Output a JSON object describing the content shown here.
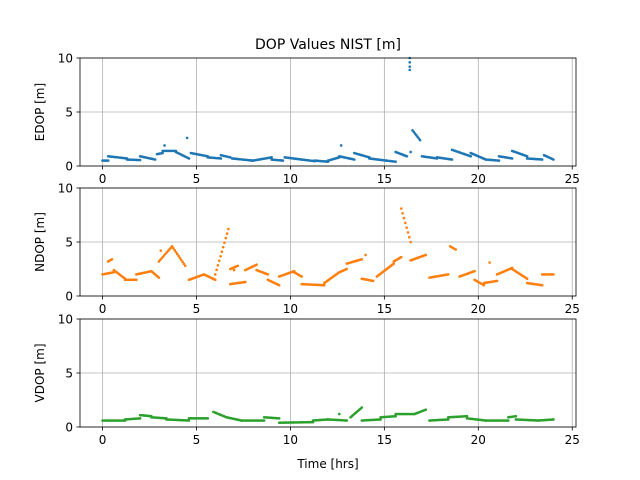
{
  "chart_data": [
    {
      "type": "scatter",
      "title": "DOP Values NIST [m]",
      "ylabel": "EDOP [m]",
      "xlabel": "",
      "xlim": [
        -1.2,
        25.2
      ],
      "ylim": [
        0,
        10
      ],
      "xticks": [
        "0",
        "5",
        "10",
        "15",
        "20",
        "25"
      ],
      "yticks": [
        "0",
        "5",
        "10"
      ],
      "grid": true,
      "color": "#1f77b4",
      "segments": [
        {
          "x0": 0.0,
          "x1": 0.3,
          "y0": 0.5,
          "y1": 0.5
        },
        {
          "x0": 0.3,
          "x1": 1.3,
          "y0": 0.9,
          "y1": 0.7
        },
        {
          "x0": 1.3,
          "x1": 2.0,
          "y0": 0.6,
          "y1": 0.55
        },
        {
          "x0": 2.0,
          "x1": 2.8,
          "y0": 0.9,
          "y1": 0.6
        },
        {
          "x0": 2.9,
          "x1": 3.2,
          "y0": 1.1,
          "y1": 1.2
        },
        {
          "x0": 3.2,
          "x1": 3.9,
          "y0": 1.4,
          "y1": 1.4
        },
        {
          "x0": 3.9,
          "x1": 4.6,
          "y0": 1.3,
          "y1": 0.7
        },
        {
          "x0": 4.7,
          "x1": 5.6,
          "y0": 1.2,
          "y1": 0.9
        },
        {
          "x0": 5.6,
          "x1": 6.3,
          "y0": 0.8,
          "y1": 0.7
        },
        {
          "x0": 6.3,
          "x1": 6.8,
          "y0": 1.0,
          "y1": 0.8
        },
        {
          "x0": 6.9,
          "x1": 8.0,
          "y0": 0.7,
          "y1": 0.5
        },
        {
          "x0": 8.0,
          "x1": 9.0,
          "y0": 0.5,
          "y1": 0.8
        },
        {
          "x0": 9.0,
          "x1": 9.6,
          "y0": 0.6,
          "y1": 0.5
        },
        {
          "x0": 9.7,
          "x1": 10.6,
          "y0": 0.8,
          "y1": 0.6
        },
        {
          "x0": 10.6,
          "x1": 11.3,
          "y0": 0.6,
          "y1": 0.45
        },
        {
          "x0": 11.3,
          "x1": 12.0,
          "y0": 0.5,
          "y1": 0.4
        },
        {
          "x0": 12.0,
          "x1": 12.6,
          "y0": 0.5,
          "y1": 0.8
        },
        {
          "x0": 12.6,
          "x1": 13.4,
          "y0": 0.9,
          "y1": 0.6
        },
        {
          "x0": 13.4,
          "x1": 14.2,
          "y0": 1.2,
          "y1": 0.8
        },
        {
          "x0": 14.2,
          "x1": 15.1,
          "y0": 0.7,
          "y1": 0.5
        },
        {
          "x0": 15.1,
          "x1": 15.6,
          "y0": 0.5,
          "y1": 0.4
        },
        {
          "x0": 15.6,
          "x1": 16.2,
          "y0": 1.3,
          "y1": 0.9
        },
        {
          "x0": 16.5,
          "x1": 16.9,
          "y0": 3.3,
          "y1": 2.4
        },
        {
          "x0": 17.0,
          "x1": 17.8,
          "y0": 0.9,
          "y1": 0.7
        },
        {
          "x0": 17.8,
          "x1": 18.6,
          "y0": 0.8,
          "y1": 0.6
        },
        {
          "x0": 18.6,
          "x1": 19.6,
          "y0": 1.5,
          "y1": 0.9
        },
        {
          "x0": 19.6,
          "x1": 20.4,
          "y0": 1.2,
          "y1": 0.6
        },
        {
          "x0": 20.4,
          "x1": 21.1,
          "y0": 0.6,
          "y1": 0.5
        },
        {
          "x0": 21.1,
          "x1": 21.8,
          "y0": 0.9,
          "y1": 0.7
        },
        {
          "x0": 21.8,
          "x1": 22.6,
          "y0": 1.4,
          "y1": 0.9
        },
        {
          "x0": 22.6,
          "x1": 23.4,
          "y0": 0.7,
          "y1": 0.6
        },
        {
          "x0": 23.5,
          "x1": 24.0,
          "y0": 1.0,
          "y1": 0.6
        }
      ],
      "points": [
        {
          "x": 4.5,
          "y": 2.6
        },
        {
          "x": 3.3,
          "y": 1.9
        },
        {
          "x": 12.7,
          "y": 1.9
        },
        {
          "x": 16.35,
          "y": 10.0
        },
        {
          "x": 16.35,
          "y": 9.6
        },
        {
          "x": 16.35,
          "y": 9.2
        },
        {
          "x": 16.35,
          "y": 8.9
        },
        {
          "x": 16.4,
          "y": 1.3
        }
      ]
    },
    {
      "type": "scatter",
      "ylabel": "NDOP [m]",
      "xlabel": "",
      "xlim": [
        -1.2,
        25.2
      ],
      "ylim": [
        0,
        10
      ],
      "xticks": [
        "0",
        "5",
        "10",
        "15",
        "20",
        "25"
      ],
      "yticks": [
        "0",
        "5",
        "10"
      ],
      "grid": true,
      "color": "#ff7f0e",
      "segments": [
        {
          "x0": 0.0,
          "x1": 0.6,
          "y0": 2.0,
          "y1": 2.2
        },
        {
          "x0": 0.3,
          "x1": 0.5,
          "y0": 3.2,
          "y1": 3.4
        },
        {
          "x0": 0.6,
          "x1": 1.2,
          "y0": 2.4,
          "y1": 1.6
        },
        {
          "x0": 1.2,
          "x1": 1.8,
          "y0": 1.5,
          "y1": 1.5
        },
        {
          "x0": 1.8,
          "x1": 2.6,
          "y0": 2.0,
          "y1": 2.3
        },
        {
          "x0": 2.6,
          "x1": 3.0,
          "y0": 2.3,
          "y1": 1.7
        },
        {
          "x0": 3.0,
          "x1": 3.7,
          "y0": 3.2,
          "y1": 4.6
        },
        {
          "x0": 3.7,
          "x1": 4.4,
          "y0": 4.6,
          "y1": 2.8
        },
        {
          "x0": 4.6,
          "x1": 5.4,
          "y0": 1.5,
          "y1": 2.0
        },
        {
          "x0": 5.4,
          "x1": 6.0,
          "y0": 2.0,
          "y1": 1.5
        },
        {
          "x0": 6.0,
          "x1": 6.7,
          "y0": 2.0,
          "y1": 6.2
        },
        {
          "x0": 6.8,
          "x1": 7.6,
          "y0": 1.1,
          "y1": 1.3
        },
        {
          "x0": 6.8,
          "x1": 7.2,
          "y0": 2.5,
          "y1": 2.8
        },
        {
          "x0": 7.6,
          "x1": 8.2,
          "y0": 2.4,
          "y1": 2.9
        },
        {
          "x0": 8.2,
          "x1": 8.8,
          "y0": 2.4,
          "y1": 2.0
        },
        {
          "x0": 8.8,
          "x1": 9.4,
          "y0": 1.5,
          "y1": 1.0
        },
        {
          "x0": 9.4,
          "x1": 10.2,
          "y0": 1.8,
          "y1": 2.3
        },
        {
          "x0": 10.2,
          "x1": 10.6,
          "y0": 2.2,
          "y1": 1.8
        },
        {
          "x0": 10.6,
          "x1": 11.8,
          "y0": 1.1,
          "y1": 1.0
        },
        {
          "x0": 11.8,
          "x1": 12.6,
          "y0": 1.2,
          "y1": 2.2
        },
        {
          "x0": 12.6,
          "x1": 13.0,
          "y0": 2.2,
          "y1": 2.5
        },
        {
          "x0": 13.0,
          "x1": 13.8,
          "y0": 3.0,
          "y1": 3.4
        },
        {
          "x0": 13.8,
          "x1": 14.4,
          "y0": 1.6,
          "y1": 1.4
        },
        {
          "x0": 14.6,
          "x1": 15.5,
          "y0": 1.8,
          "y1": 3.0
        },
        {
          "x0": 15.5,
          "x1": 15.9,
          "y0": 3.2,
          "y1": 3.6
        },
        {
          "x0": 15.9,
          "x1": 16.4,
          "y0": 8.1,
          "y1": 5.0
        },
        {
          "x0": 16.4,
          "x1": 17.2,
          "y0": 3.3,
          "y1": 3.8
        },
        {
          "x0": 17.4,
          "x1": 18.4,
          "y0": 1.7,
          "y1": 2.0
        },
        {
          "x0": 18.5,
          "x1": 18.8,
          "y0": 4.6,
          "y1": 4.3
        },
        {
          "x0": 19.0,
          "x1": 19.8,
          "y0": 1.8,
          "y1": 2.3
        },
        {
          "x0": 19.8,
          "x1": 20.3,
          "y0": 1.5,
          "y1": 1.0
        },
        {
          "x0": 20.3,
          "x1": 21.0,
          "y0": 1.2,
          "y1": 1.4
        },
        {
          "x0": 21.0,
          "x1": 21.8,
          "y0": 2.0,
          "y1": 2.6
        },
        {
          "x0": 21.8,
          "x1": 22.6,
          "y0": 2.5,
          "y1": 1.6
        },
        {
          "x0": 22.6,
          "x1": 23.4,
          "y0": 1.2,
          "y1": 1.0
        },
        {
          "x0": 23.4,
          "x1": 24.0,
          "y0": 2.0,
          "y1": 2.0
        }
      ],
      "points": [
        {
          "x": 3.1,
          "y": 4.2
        },
        {
          "x": 7.0,
          "y": 2.4
        },
        {
          "x": 14.0,
          "y": 3.8
        },
        {
          "x": 20.6,
          "y": 3.1
        }
      ]
    },
    {
      "type": "scatter",
      "ylabel": "VDOP [m]",
      "xlabel": "Time [hrs]",
      "xlim": [
        -1.2,
        25.2
      ],
      "ylim": [
        0,
        10
      ],
      "xticks": [
        "0",
        "5",
        "10",
        "15",
        "20",
        "25"
      ],
      "yticks": [
        "0",
        "5",
        "10"
      ],
      "grid": true,
      "color": "#2ca02c",
      "segments": [
        {
          "x0": 0.0,
          "x1": 1.2,
          "y0": 0.6,
          "y1": 0.6
        },
        {
          "x0": 1.2,
          "x1": 2.0,
          "y0": 0.7,
          "y1": 0.8
        },
        {
          "x0": 2.0,
          "x1": 2.6,
          "y0": 1.1,
          "y1": 1.0
        },
        {
          "x0": 2.6,
          "x1": 3.4,
          "y0": 0.9,
          "y1": 0.8
        },
        {
          "x0": 3.4,
          "x1": 4.6,
          "y0": 0.7,
          "y1": 0.6
        },
        {
          "x0": 4.6,
          "x1": 5.6,
          "y0": 0.8,
          "y1": 0.8
        },
        {
          "x0": 5.9,
          "x1": 6.6,
          "y0": 1.4,
          "y1": 0.9
        },
        {
          "x0": 6.6,
          "x1": 7.4,
          "y0": 0.9,
          "y1": 0.6
        },
        {
          "x0": 7.4,
          "x1": 8.6,
          "y0": 0.6,
          "y1": 0.6
        },
        {
          "x0": 8.6,
          "x1": 9.4,
          "y0": 0.9,
          "y1": 0.8
        },
        {
          "x0": 9.4,
          "x1": 11.2,
          "y0": 0.4,
          "y1": 0.45
        },
        {
          "x0": 11.2,
          "x1": 12.0,
          "y0": 0.6,
          "y1": 0.7
        },
        {
          "x0": 12.0,
          "x1": 13.0,
          "y0": 0.7,
          "y1": 0.6
        },
        {
          "x0": 13.2,
          "x1": 13.8,
          "y0": 0.9,
          "y1": 1.8
        },
        {
          "x0": 13.8,
          "x1": 14.8,
          "y0": 0.6,
          "y1": 0.7
        },
        {
          "x0": 14.8,
          "x1": 15.6,
          "y0": 0.9,
          "y1": 1.0
        },
        {
          "x0": 15.6,
          "x1": 16.6,
          "y0": 1.2,
          "y1": 1.2
        },
        {
          "x0": 16.6,
          "x1": 17.2,
          "y0": 1.2,
          "y1": 1.6
        },
        {
          "x0": 17.4,
          "x1": 18.4,
          "y0": 0.6,
          "y1": 0.7
        },
        {
          "x0": 18.4,
          "x1": 19.4,
          "y0": 0.9,
          "y1": 1.0
        },
        {
          "x0": 19.4,
          "x1": 20.4,
          "y0": 0.8,
          "y1": 0.6
        },
        {
          "x0": 20.4,
          "x1": 21.6,
          "y0": 0.6,
          "y1": 0.6
        },
        {
          "x0": 21.6,
          "x1": 22.0,
          "y0": 0.9,
          "y1": 1.0
        },
        {
          "x0": 22.0,
          "x1": 23.2,
          "y0": 0.7,
          "y1": 0.6
        },
        {
          "x0": 23.2,
          "x1": 24.0,
          "y0": 0.6,
          "y1": 0.7
        }
      ],
      "points": [
        {
          "x": 12.6,
          "y": 1.2
        }
      ]
    }
  ]
}
